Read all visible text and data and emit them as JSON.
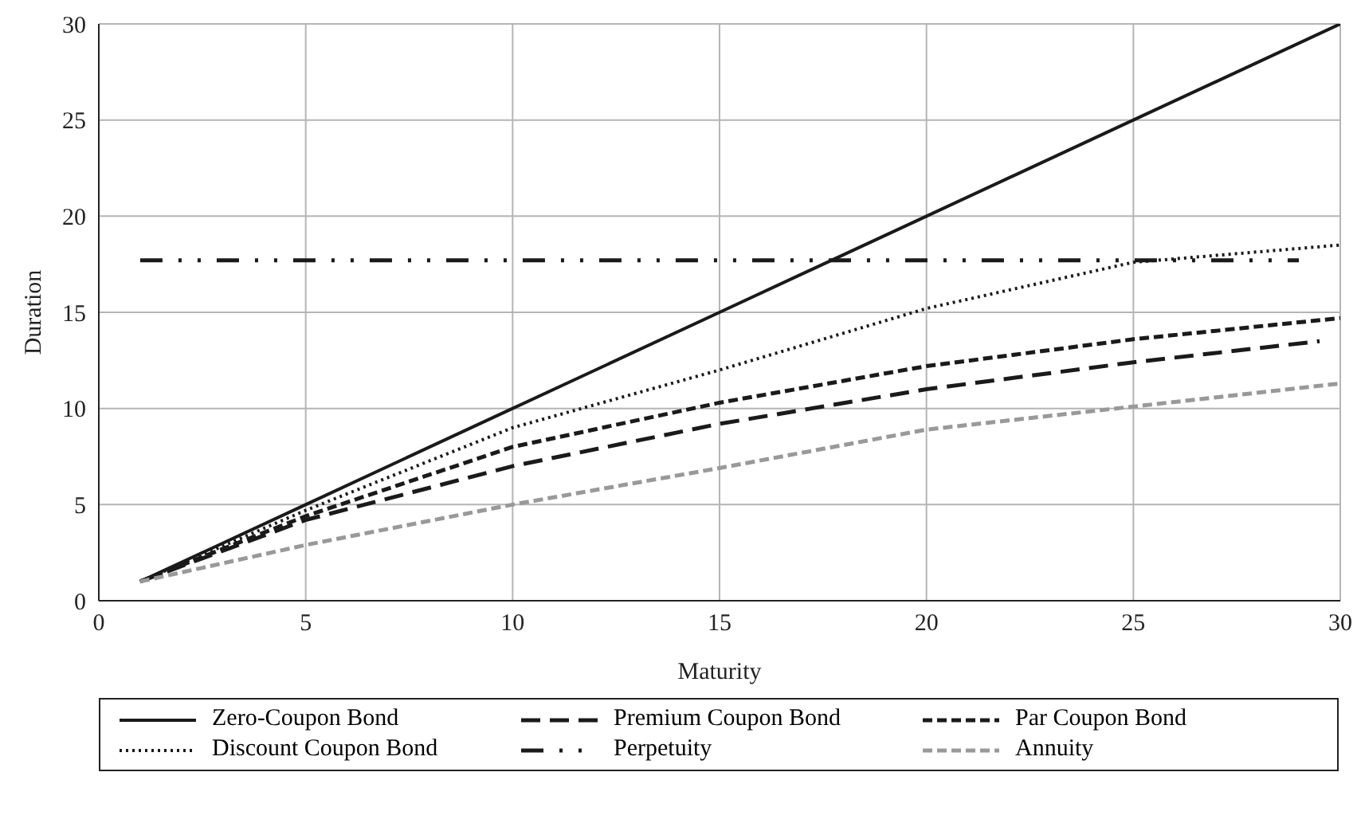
{
  "chart_data": {
    "type": "line",
    "xlabel": "Maturity",
    "ylabel": "Duration",
    "xlim": [
      0,
      30
    ],
    "ylim": [
      0,
      30
    ],
    "xticks": [
      0,
      5,
      10,
      15,
      20,
      25,
      30
    ],
    "yticks": [
      0,
      5,
      10,
      15,
      20,
      25,
      30
    ],
    "grid": true,
    "legend": "bottom",
    "marker": "none",
    "x": [
      1,
      5,
      10,
      15,
      20,
      25,
      30
    ],
    "series": [
      {
        "name": "Zero-Coupon Bond",
        "color": "#1a1a1a",
        "line_style": "solid",
        "values": [
          1,
          5,
          10,
          15,
          20,
          25,
          30
        ]
      },
      {
        "name": "Premium Coupon Bond",
        "color": "#1a1a1a",
        "line_style": "longdash",
        "x": [
          1,
          5,
          10,
          15,
          20,
          25,
          29.5
        ],
        "values": [
          1,
          4.2,
          7.0,
          9.2,
          11.0,
          12.4,
          13.5
        ]
      },
      {
        "name": "Par Coupon Bond",
        "color": "#1a1a1a",
        "line_style": "dashed",
        "values": [
          1,
          4.4,
          8.0,
          10.3,
          12.2,
          13.6,
          14.7
        ]
      },
      {
        "name": "Discount Coupon Bond",
        "color": "#1a1a1a",
        "line_style": "dotted",
        "values": [
          1,
          4.7,
          9.0,
          12.0,
          15.2,
          17.6,
          18.5
        ]
      },
      {
        "name": "Perpetuity",
        "color": "#1a1a1a",
        "line_style": "dashdot",
        "x": [
          1,
          29
        ],
        "values": [
          17.7,
          17.7
        ]
      },
      {
        "name": "Annuity",
        "color": "#999999",
        "line_style": "dashed",
        "values": [
          1,
          2.9,
          5.0,
          6.9,
          8.9,
          10.1,
          11.3
        ]
      }
    ]
  }
}
